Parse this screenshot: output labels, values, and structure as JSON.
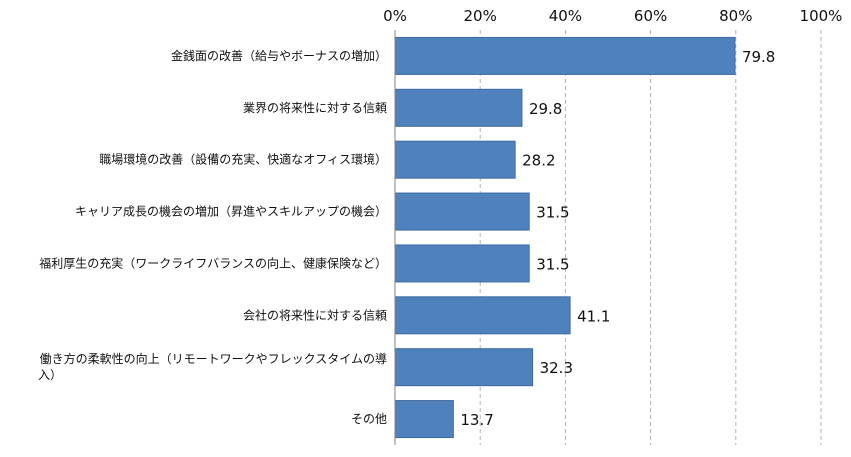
{
  "chart_data": {
    "type": "bar",
    "orientation": "horizontal",
    "categories": [
      [
        "金銭面の改善（給与やボーナスの増加）"
      ],
      [
        "業界の将来性に対する信頼"
      ],
      [
        "職場環境の改善（設備の充実、快適なオフィス環境）"
      ],
      [
        "キャリア成長の機会の増加（昇進やスキルアップの機会）"
      ],
      [
        "福利厚生の充実（ワークライフバランスの向上、健康保険など）"
      ],
      [
        "会社の将来性に対する信頼"
      ],
      [
        "働き方の柔軟性の向上（リモートワークやフレックスタイムの導",
        "入）"
      ],
      [
        "その他"
      ]
    ],
    "values": [
      79.8,
      29.8,
      28.2,
      31.5,
      31.5,
      41.1,
      32.3,
      13.7
    ],
    "value_labels": [
      "79.8",
      "29.8",
      "28.2",
      "31.5",
      "31.5",
      "41.1",
      "32.3",
      "13.7"
    ],
    "xlim": [
      0,
      100
    ],
    "x_ticks": [
      "0%",
      "20%",
      "40%",
      "60%",
      "80%",
      "100%"
    ],
    "x_axis_position": "top",
    "grid": true,
    "bar_color": "#4f81bd",
    "title": "",
    "xlabel": "",
    "ylabel": ""
  }
}
